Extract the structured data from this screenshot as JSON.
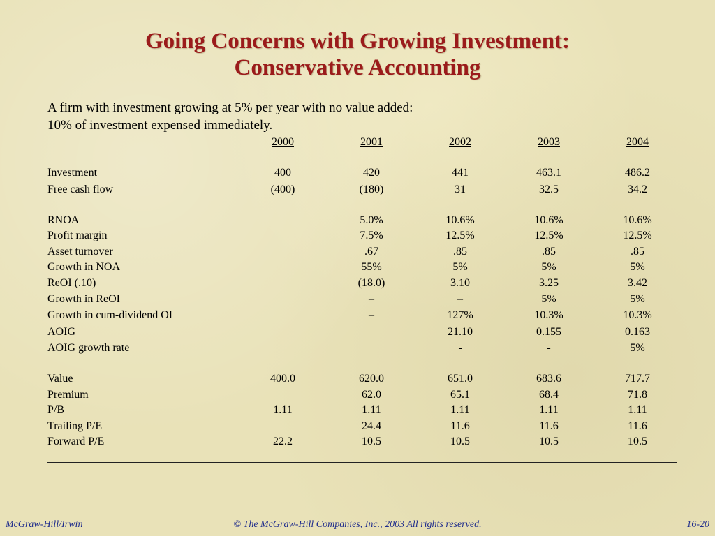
{
  "title": {
    "line1": "Going Concerns with Growing Investment:",
    "line2": "Conservative Accounting"
  },
  "intro": {
    "line1": "A firm with investment growing at 5% per year with no value added:",
    "line2": "10% of investment expensed immediately."
  },
  "years": [
    "2000",
    "2001",
    "2002",
    "2003",
    "2004"
  ],
  "rows": [
    {
      "label": "Investment",
      "cells": [
        "400",
        "420",
        "441",
        "463.1",
        "486.2"
      ]
    },
    {
      "label": "Free cash flow",
      "cells": [
        "(400)",
        "(180)",
        "31",
        "32.5",
        "34.2"
      ]
    },
    {
      "label": "RNOA",
      "cells": [
        "",
        "5.0%",
        "10.6%",
        "10.6%",
        "10.6%"
      ]
    },
    {
      "label": "Profit margin",
      "cells": [
        "",
        "7.5%",
        "12.5%",
        "12.5%",
        "12.5%"
      ]
    },
    {
      "label": "Asset turnover",
      "cells": [
        "",
        ".67",
        ".85",
        ".85",
        ".85"
      ]
    },
    {
      "label": "Growth in NOA",
      "cells": [
        "",
        "55%",
        "5%",
        "5%",
        "5%"
      ]
    },
    {
      "label": "ReOI (.10)",
      "cells": [
        "",
        "(18.0)",
        "3.10",
        "3.25",
        "3.42"
      ]
    },
    {
      "label": "Growth in ReOI",
      "cells": [
        "",
        "–",
        "–",
        "5%",
        "5%"
      ]
    },
    {
      "label": "Growth in cum-dividend OI",
      "cells": [
        "",
        "–",
        "127%",
        "10.3%",
        "10.3%"
      ]
    },
    {
      "label": "AOIG",
      "cells": [
        "",
        "",
        "21.10",
        "0.155",
        "0.163"
      ]
    },
    {
      "label": "AOIG growth rate",
      "cells": [
        "",
        "",
        "-",
        "-",
        "5%"
      ]
    },
    {
      "label": "Value",
      "cells": [
        "400.0",
        "620.0",
        "651.0",
        "683.6",
        "717.7"
      ]
    },
    {
      "label": "Premium",
      "cells": [
        "",
        "62.0",
        "65.1",
        "68.4",
        "71.8"
      ]
    },
    {
      "label": "P/B",
      "cells": [
        "1.11",
        "1.11",
        "1.11",
        "1.11",
        "1.11"
      ]
    },
    {
      "label": "Trailing P/E",
      "cells": [
        "",
        "24.4",
        "11.6",
        "11.6",
        "11.6"
      ]
    },
    {
      "label": "Forward P/E",
      "cells": [
        "22.2",
        "10.5",
        "10.5",
        "10.5",
        "10.5"
      ]
    }
  ],
  "footer": {
    "publisher": "McGraw-Hill/Irwin",
    "copyright": "© The McGraw-Hill Companies, Inc., 2003  All rights reserved.",
    "page": "16-20"
  }
}
